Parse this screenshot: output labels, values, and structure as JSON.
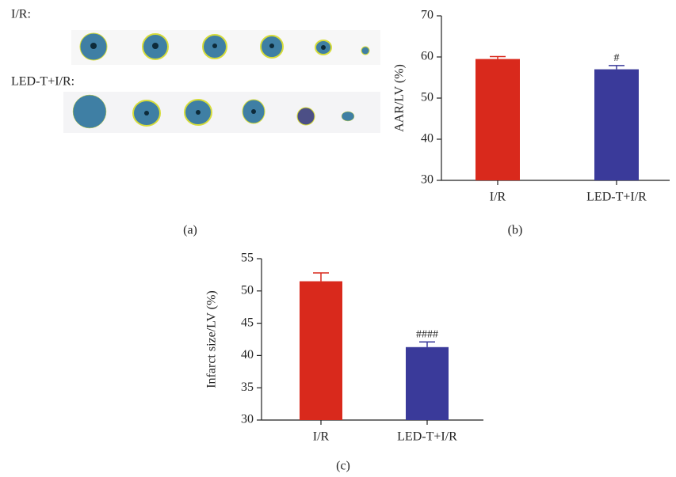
{
  "panel_a": {
    "labels": [
      "I/R:",
      "LED-T+I/R:"
    ],
    "caption": "(a)"
  },
  "chart_data": [
    {
      "type": "bar",
      "panel_label": "(b)",
      "y_label": "AAR/LV (%)",
      "categories": [
        "I/R",
        "LED-T+I/R"
      ],
      "values": [
        59.5,
        57.0
      ],
      "errors": [
        0.6,
        0.9
      ],
      "colors": [
        "#d9291c",
        "#3a3a9a"
      ],
      "annotations": [
        null,
        "#"
      ],
      "ylim": [
        30,
        70
      ],
      "yticks": [
        30,
        40,
        50,
        60,
        70
      ]
    },
    {
      "type": "bar",
      "panel_label": "(c)",
      "y_label": "Infarct size/LV (%)",
      "categories": [
        "I/R",
        "LED-T+I/R"
      ],
      "values": [
        51.5,
        41.3
      ],
      "errors": [
        1.3,
        0.8
      ],
      "colors": [
        "#d9291c",
        "#3a3a9a"
      ],
      "annotations": [
        null,
        "####"
      ],
      "ylim": [
        30,
        55
      ],
      "yticks": [
        30,
        35,
        40,
        45,
        50,
        55
      ]
    }
  ]
}
